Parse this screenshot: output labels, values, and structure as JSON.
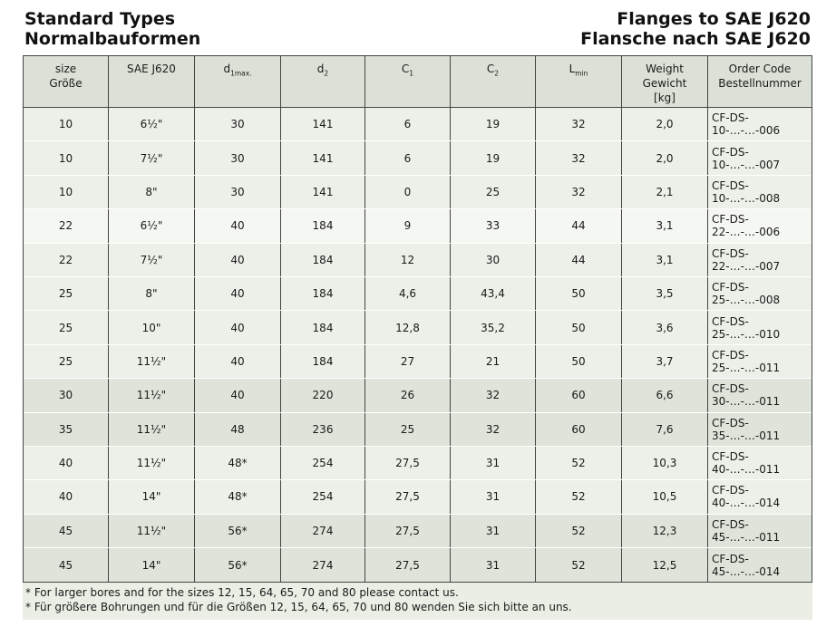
{
  "page": {
    "title": {
      "left": [
        "Standard Types",
        "Normalbauformen"
      ],
      "right": [
        "Flanges to SAE J620",
        "Flansche nach SAE J620"
      ]
    }
  },
  "colors": {
    "header_bg": "#dbe1d6",
    "row_light": "#edf0e9",
    "row_white": "#f5f7f2",
    "row_dark": "#dee4d9",
    "footnote_bg": "#eaeee5",
    "border": "#444444",
    "text": "#1a1a1a"
  },
  "table": {
    "headers": [
      {
        "id": "size",
        "lines": [
          "size",
          "Größe"
        ]
      },
      {
        "id": "sae-j620",
        "lines": [
          "SAE J620"
        ]
      },
      {
        "id": "d1max",
        "base": "d",
        "sub": "1max."
      },
      {
        "id": "d2",
        "base": "d",
        "sub": "2"
      },
      {
        "id": "c1",
        "base": "C",
        "sub": "1"
      },
      {
        "id": "c2",
        "base": "C",
        "sub": "2"
      },
      {
        "id": "lmin",
        "base": "L",
        "sub": "min"
      },
      {
        "id": "weight",
        "lines": [
          "Weight",
          "Gewicht",
          "[kg]"
        ]
      },
      {
        "id": "order-code",
        "lines": [
          "Order Code",
          "Bestellnummer"
        ]
      }
    ],
    "rows": [
      {
        "band": "light",
        "cells": [
          "10",
          "6½\"",
          "30",
          "141",
          "6",
          "19",
          "32",
          "2,0",
          "CF-DS-10-…-…-006"
        ]
      },
      {
        "band": "light",
        "cells": [
          "10",
          "7½\"",
          "30",
          "141",
          "6",
          "19",
          "32",
          "2,0",
          "CF-DS-10-…-…-007"
        ]
      },
      {
        "band": "light",
        "cells": [
          "10",
          "8\"",
          "30",
          "141",
          "0",
          "25",
          "32",
          "2,1",
          "CF-DS-10-…-…-008"
        ]
      },
      {
        "band": "white",
        "cells": [
          "22",
          "6½\"",
          "40",
          "184",
          "9",
          "33",
          "44",
          "3,1",
          "CF-DS-22-…-…-006"
        ]
      },
      {
        "band": "light",
        "cells": [
          "22",
          "7½\"",
          "40",
          "184",
          "12",
          "30",
          "44",
          "3,1",
          "CF-DS-22-…-…-007"
        ]
      },
      {
        "band": "light",
        "cells": [
          "25",
          "8\"",
          "40",
          "184",
          "4,6",
          "43,4",
          "50",
          "3,5",
          "CF-DS-25-…-…-008"
        ]
      },
      {
        "band": "light",
        "cells": [
          "25",
          "10\"",
          "40",
          "184",
          "12,8",
          "35,2",
          "50",
          "3,6",
          "CF-DS-25-…-…-010"
        ]
      },
      {
        "band": "light",
        "cells": [
          "25",
          "11½\"",
          "40",
          "184",
          "27",
          "21",
          "50",
          "3,7",
          "CF-DS-25-…-…-011"
        ]
      },
      {
        "band": "dark",
        "cells": [
          "30",
          "11½\"",
          "40",
          "220",
          "26",
          "32",
          "60",
          "6,6",
          "CF-DS-30-…-…-011"
        ]
      },
      {
        "band": "dark",
        "cells": [
          "35",
          "11½\"",
          "48",
          "236",
          "25",
          "32",
          "60",
          "7,6",
          "CF-DS-35-…-…-011"
        ]
      },
      {
        "band": "light",
        "cells": [
          "40",
          "11½\"",
          "48*",
          "254",
          "27,5",
          "31",
          "52",
          "10,3",
          "CF-DS-40-…-…-011"
        ]
      },
      {
        "band": "light",
        "cells": [
          "40",
          "14\"",
          "48*",
          "254",
          "27,5",
          "31",
          "52",
          "10,5",
          "CF-DS-40-…-…-014"
        ]
      },
      {
        "band": "dark",
        "cells": [
          "45",
          "11½\"",
          "56*",
          "274",
          "27,5",
          "31",
          "52",
          "12,3",
          "CF-DS-45-…-…-011"
        ]
      },
      {
        "band": "dark",
        "cells": [
          "45",
          "14\"",
          "56*",
          "274",
          "27,5",
          "31",
          "52",
          "12,5",
          "CF-DS-45-…-…-014"
        ]
      }
    ]
  },
  "footnotes": [
    "* For larger bores and for the sizes 12, 15, 64, 65, 70 and 80 please contact us.",
    "* Für größere Bohrungen und für die Größen 12, 15, 64, 65, 70 und 80 wenden Sie sich bitte an uns."
  ]
}
